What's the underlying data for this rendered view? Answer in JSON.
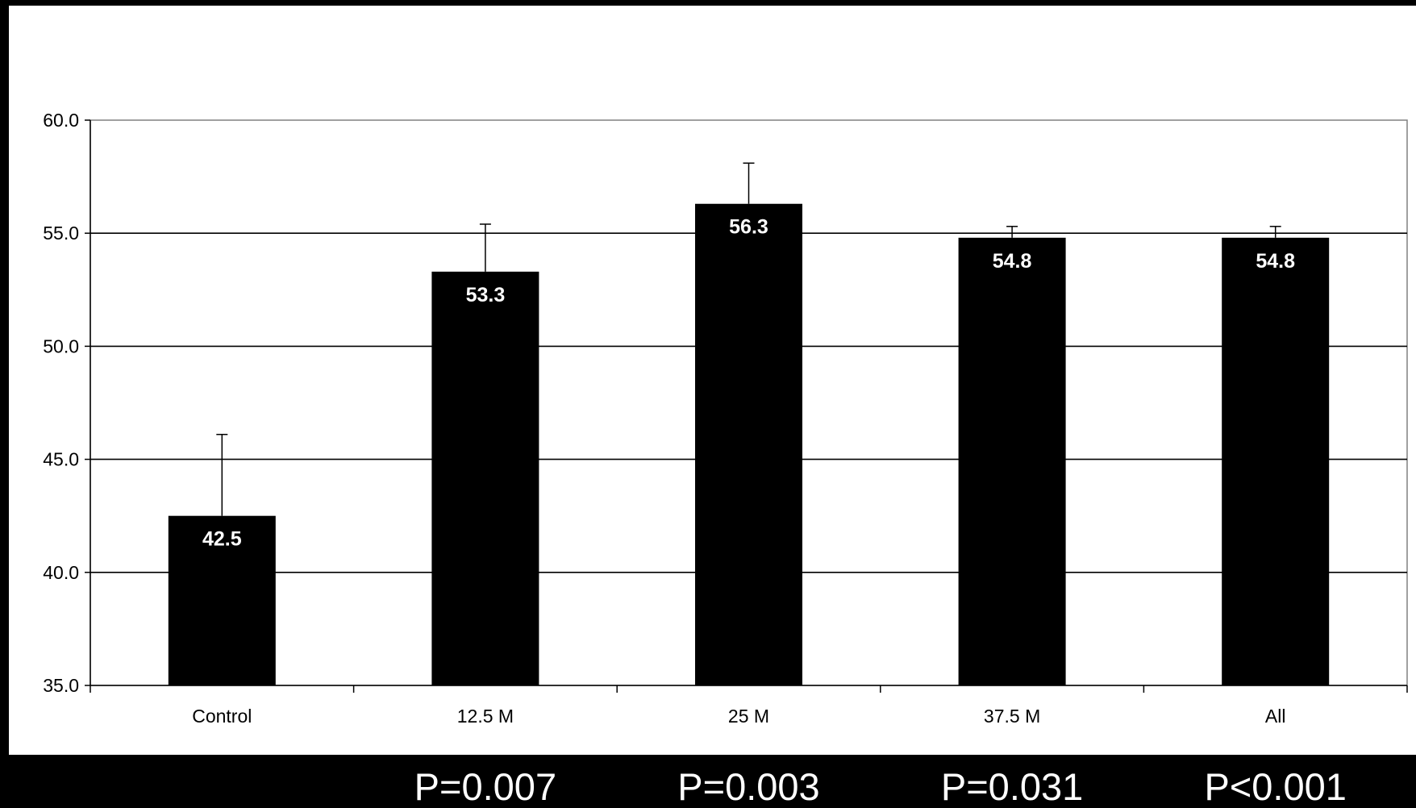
{
  "chart_data": {
    "type": "bar",
    "title": "",
    "xlabel": "",
    "ylabel": "",
    "categories": [
      "Control",
      "12.5 M",
      "25 M",
      "37.5 M",
      "All"
    ],
    "values": [
      42.5,
      53.3,
      56.3,
      54.8,
      54.8
    ],
    "value_labels": [
      "42.5",
      "53.3",
      "56.3",
      "54.8",
      "54.8"
    ],
    "error_upper": [
      46.1,
      55.4,
      58.1,
      55.3,
      55.3
    ],
    "ylim": [
      35.0,
      60.0
    ],
    "yticks": [
      "35.0",
      "40.0",
      "45.0",
      "50.0",
      "55.0",
      "60.0"
    ],
    "grid": true,
    "bar_color": "#000000",
    "label_color": "#ffffff",
    "background": "#ffffff"
  },
  "p_values": [
    "P=0.007",
    "P=0.003",
    "P=0.031",
    "P<0.001"
  ]
}
